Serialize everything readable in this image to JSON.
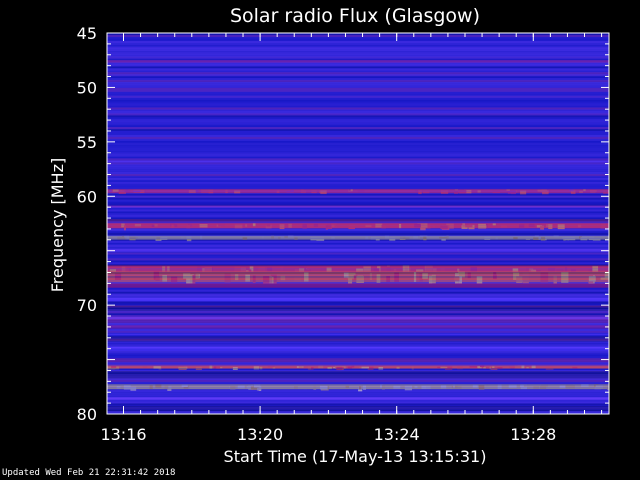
{
  "chart_data": {
    "type": "heatmap",
    "title": "Solar radio Flux (Glasgow)",
    "xlabel": "Start Time (17-May-13 13:15:31)",
    "ylabel": "Frequency [MHz]",
    "x_ticks": [
      "13:16",
      "13:20",
      "13:24",
      "13:28"
    ],
    "x_tick_minutes": [
      0.483,
      4.483,
      8.483,
      12.483
    ],
    "x_range_minutes": [
      0,
      14.7
    ],
    "y_ticks": [
      45,
      50,
      55,
      60,
      65,
      70,
      75,
      80
    ],
    "y_tick_labels": [
      "45",
      "50",
      "55",
      "60",
      "",
      "70",
      "",
      "80"
    ],
    "ylim": [
      45,
      80
    ],
    "y_inverted": true,
    "colormap": [
      "#000030",
      "#1c1cd8",
      "#5a3cff",
      "#cc1030",
      "#ff3000",
      "#ffd200",
      "#ffff9c"
    ],
    "bands": [
      {
        "mhz": 47.6,
        "width": 0.25,
        "level": 0.45
      },
      {
        "mhz": 56.8,
        "width": 0.15,
        "level": 0.35
      },
      {
        "mhz": 59.5,
        "width": 0.35,
        "level": 0.55
      },
      {
        "mhz": 61.0,
        "width": 0.2,
        "level": 0.3
      },
      {
        "mhz": 62.7,
        "width": 0.45,
        "level": 0.62
      },
      {
        "mhz": 63.8,
        "width": 0.35,
        "level": 0.97
      },
      {
        "mhz": 65.0,
        "width": 0.25,
        "level": 0.35
      },
      {
        "mhz": 66.8,
        "width": 0.9,
        "level": 0.62
      },
      {
        "mhz": 67.4,
        "width": 1.0,
        "level": 0.72
      },
      {
        "mhz": 68.2,
        "width": 0.4,
        "level": 0.5
      },
      {
        "mhz": 69.5,
        "width": 0.3,
        "level": 0.3
      },
      {
        "mhz": 71.2,
        "width": 0.25,
        "level": 0.35
      },
      {
        "mhz": 72.0,
        "width": 0.3,
        "level": 0.45
      },
      {
        "mhz": 72.7,
        "width": 0.15,
        "level": 0.3
      },
      {
        "mhz": 74.0,
        "width": 0.35,
        "level": 0.3
      },
      {
        "mhz": 75.7,
        "width": 0.3,
        "level": 0.72
      },
      {
        "mhz": 77.5,
        "width": 0.45,
        "level": 0.92
      },
      {
        "mhz": 78.6,
        "width": 0.3,
        "level": 0.35
      }
    ],
    "dark_bands": [
      {
        "mhz": 62.2,
        "width": 0.25
      },
      {
        "mhz": 70.3,
        "width": 0.5
      },
      {
        "mhz": 73.1,
        "width": 0.5
      },
      {
        "mhz": 76.4,
        "width": 0.7
      },
      {
        "mhz": 79.5,
        "width": 0.5
      }
    ]
  },
  "footer": {
    "updated_text": "Updated Wed Feb 21 22:31:42 2018"
  }
}
